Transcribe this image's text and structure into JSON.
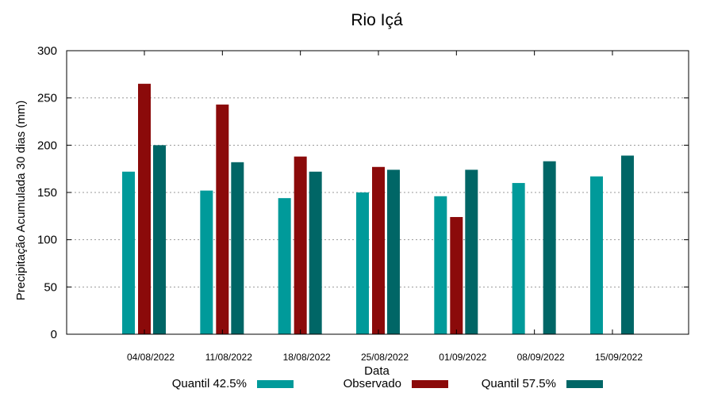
{
  "chart_data": {
    "type": "bar",
    "title": "Rio Içá",
    "xlabel": "Data",
    "ylabel": "Precipitação Acumulada 30 dias (mm)",
    "ylim": [
      0,
      300
    ],
    "yticks": [
      0,
      50,
      100,
      150,
      200,
      250,
      300
    ],
    "grid": true,
    "legend_position": "bottom",
    "categories": [
      "04/08/2022",
      "11/08/2022",
      "18/08/2022",
      "25/08/2022",
      "01/09/2022",
      "08/09/2022",
      "15/09/2022"
    ],
    "series": [
      {
        "name": "Quantil 42.5%",
        "color": "#009a9a",
        "values": [
          172,
          152,
          144,
          150,
          146,
          160,
          167
        ]
      },
      {
        "name": "Observado",
        "color": "#8b0a0a",
        "values": [
          265,
          243,
          188,
          177,
          124,
          null,
          null
        ]
      },
      {
        "name": "Quantil 57.5%",
        "color": "#006666",
        "values": [
          200,
          182,
          172,
          174,
          174,
          183,
          189
        ]
      }
    ]
  }
}
